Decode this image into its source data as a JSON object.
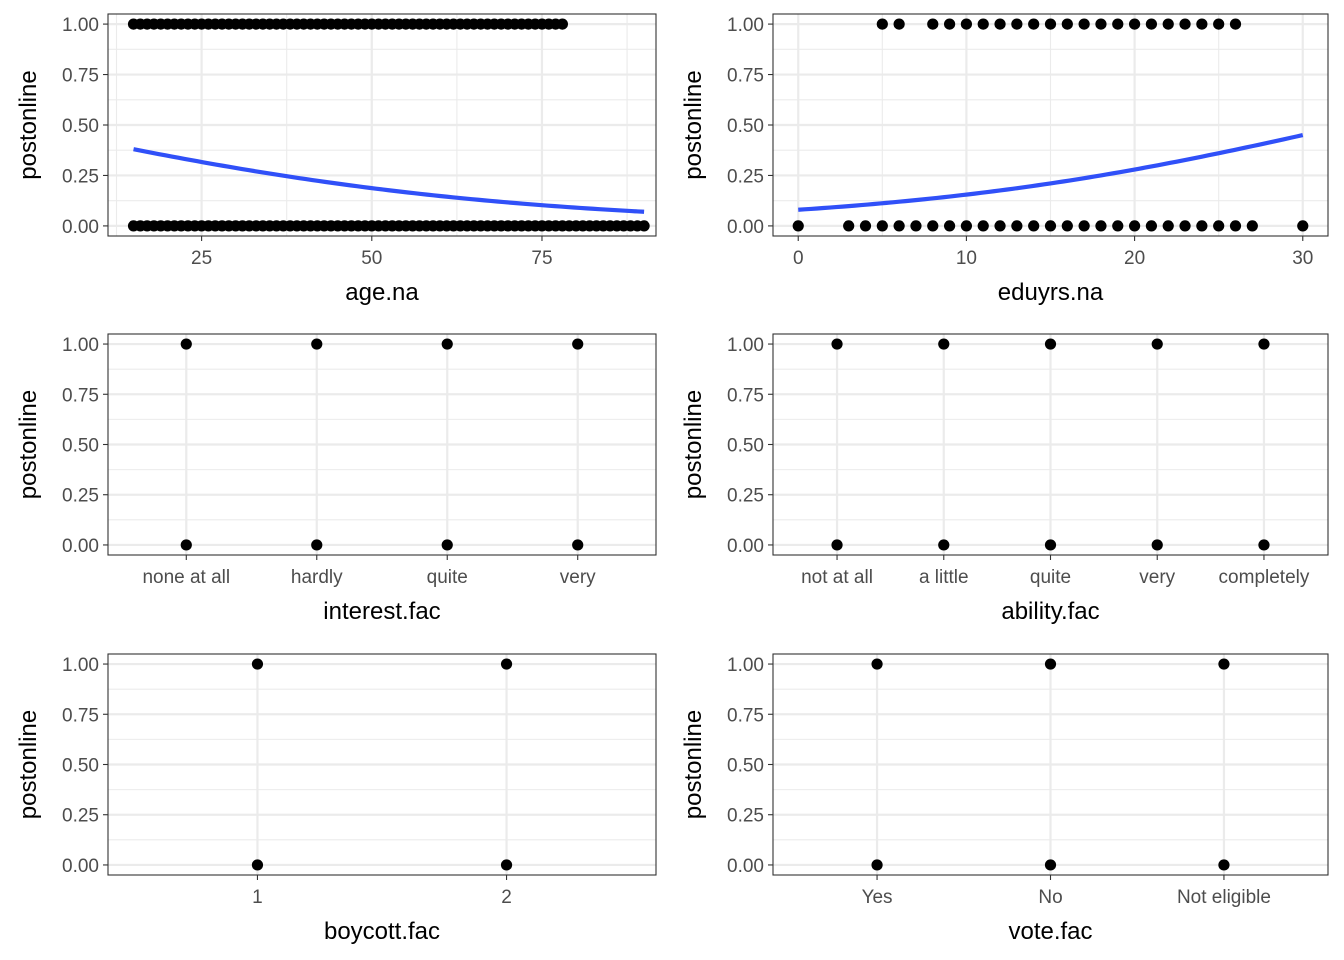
{
  "colors": {
    "points": "#000000",
    "smooth": "#3050f8",
    "grid": "#ebebeb",
    "border": "#333333"
  },
  "chart_data": [
    {
      "type": "scatter",
      "xlabel": "age.na",
      "ylabel": "postonline",
      "x_type": "continuous",
      "xlim": [
        11.25,
        91.75
      ],
      "xticks": [
        25,
        50,
        75
      ],
      "xtick_labels": [
        "25",
        "50",
        "75"
      ],
      "ylim": [
        -0.05,
        1.05
      ],
      "yticks": [
        0,
        0.25,
        0.5,
        0.75,
        1
      ],
      "ytick_labels": [
        "0.00",
        "0.25",
        "0.50",
        "0.75",
        "1.00"
      ],
      "grid": true,
      "points": {
        "y1_x_range": [
          15,
          78
        ],
        "y0_x_range": [
          15,
          90
        ]
      },
      "smooth": {
        "method": "logistic",
        "x": [
          15,
          30,
          45,
          60,
          75,
          90
        ],
        "y": [
          0.38,
          0.29,
          0.21,
          0.15,
          0.11,
          0.07
        ]
      }
    },
    {
      "type": "scatter",
      "xlabel": "eduyrs.na",
      "ylabel": "postonline",
      "x_type": "continuous",
      "xlim": [
        -1.5,
        31.5
      ],
      "xticks": [
        0,
        10,
        20,
        30
      ],
      "xtick_labels": [
        "0",
        "10",
        "20",
        "30"
      ],
      "ylim": [
        -0.05,
        1.05
      ],
      "yticks": [
        0,
        0.25,
        0.5,
        0.75,
        1
      ],
      "ytick_labels": [
        "0.00",
        "0.25",
        "0.50",
        "0.75",
        "1.00"
      ],
      "grid": true,
      "points": {
        "y1_x": [
          5,
          6,
          8,
          9,
          10,
          11,
          12,
          13,
          14,
          15,
          16,
          17,
          18,
          19,
          20,
          21,
          22,
          23,
          24,
          25,
          26
        ],
        "y0_x": [
          0,
          3,
          4,
          5,
          6,
          7,
          8,
          9,
          10,
          11,
          12,
          13,
          14,
          15,
          16,
          17,
          18,
          19,
          20,
          21,
          22,
          23,
          24,
          25,
          26,
          27,
          30
        ]
      },
      "smooth": {
        "method": "logistic",
        "x": [
          0,
          5,
          10,
          15,
          20,
          25,
          30
        ],
        "y": [
          0.08,
          0.11,
          0.15,
          0.2,
          0.27,
          0.36,
          0.45
        ]
      }
    },
    {
      "type": "scatter",
      "xlabel": "interest.fac",
      "ylabel": "postonline",
      "x_type": "discrete",
      "categories": [
        "none at all",
        "hardly",
        "quite",
        "very"
      ],
      "ylim": [
        -0.05,
        1.05
      ],
      "yticks": [
        0,
        0.25,
        0.5,
        0.75,
        1
      ],
      "ytick_labels": [
        "0.00",
        "0.25",
        "0.50",
        "0.75",
        "1.00"
      ],
      "grid": true,
      "points": {
        "y_values": [
          0,
          1
        ]
      }
    },
    {
      "type": "scatter",
      "xlabel": "ability.fac",
      "ylabel": "postonline",
      "x_type": "discrete",
      "categories": [
        "not at all",
        "a little",
        "quite",
        "very",
        "completely"
      ],
      "ylim": [
        -0.05,
        1.05
      ],
      "yticks": [
        0,
        0.25,
        0.5,
        0.75,
        1
      ],
      "ytick_labels": [
        "0.00",
        "0.25",
        "0.50",
        "0.75",
        "1.00"
      ],
      "grid": true,
      "points": {
        "y_values": [
          0,
          1
        ]
      }
    },
    {
      "type": "scatter",
      "xlabel": "boycott.fac",
      "ylabel": "postonline",
      "x_type": "discrete",
      "categories": [
        "1",
        "2"
      ],
      "ylim": [
        -0.05,
        1.05
      ],
      "yticks": [
        0,
        0.25,
        0.5,
        0.75,
        1
      ],
      "ytick_labels": [
        "0.00",
        "0.25",
        "0.50",
        "0.75",
        "1.00"
      ],
      "grid": true,
      "points": {
        "y_values": [
          0,
          1
        ]
      }
    },
    {
      "type": "scatter",
      "xlabel": "vote.fac",
      "ylabel": "postonline",
      "x_type": "discrete",
      "categories": [
        "Yes",
        "No",
        "Not eligible"
      ],
      "ylim": [
        -0.05,
        1.05
      ],
      "yticks": [
        0,
        0.25,
        0.5,
        0.75,
        1
      ],
      "ytick_labels": [
        "0.00",
        "0.25",
        "0.50",
        "0.75",
        "1.00"
      ],
      "grid": true,
      "points": {
        "y_values": [
          0,
          1
        ]
      }
    }
  ]
}
